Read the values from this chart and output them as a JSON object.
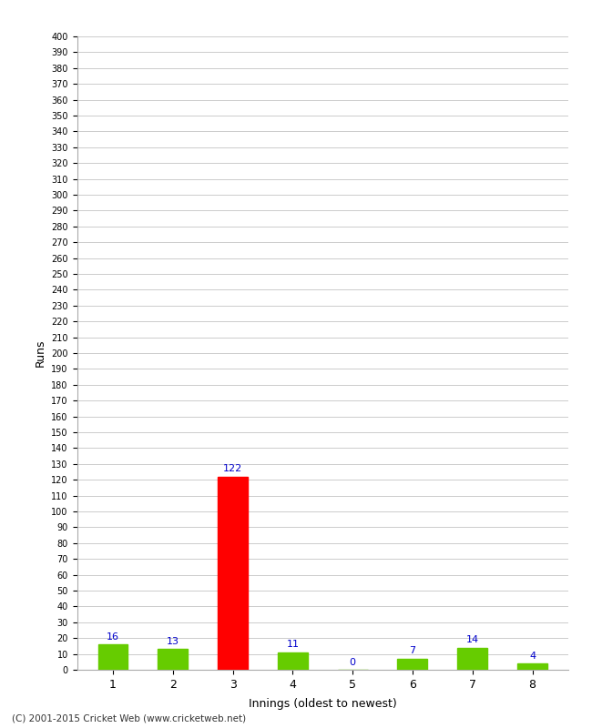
{
  "categories": [
    "1",
    "2",
    "3",
    "4",
    "5",
    "6",
    "7",
    "8"
  ],
  "values": [
    16,
    13,
    122,
    11,
    0,
    7,
    14,
    4
  ],
  "bar_colors": [
    "#66cc00",
    "#66cc00",
    "#ff0000",
    "#66cc00",
    "#66cc00",
    "#66cc00",
    "#66cc00",
    "#66cc00"
  ],
  "ylabel": "Runs",
  "xlabel": "Innings (oldest to newest)",
  "ylim": [
    0,
    400
  ],
  "background_color": "#ffffff",
  "grid_color": "#cccccc",
  "label_color": "#0000cc",
  "footer": "(C) 2001-2015 Cricket Web (www.cricketweb.net)"
}
